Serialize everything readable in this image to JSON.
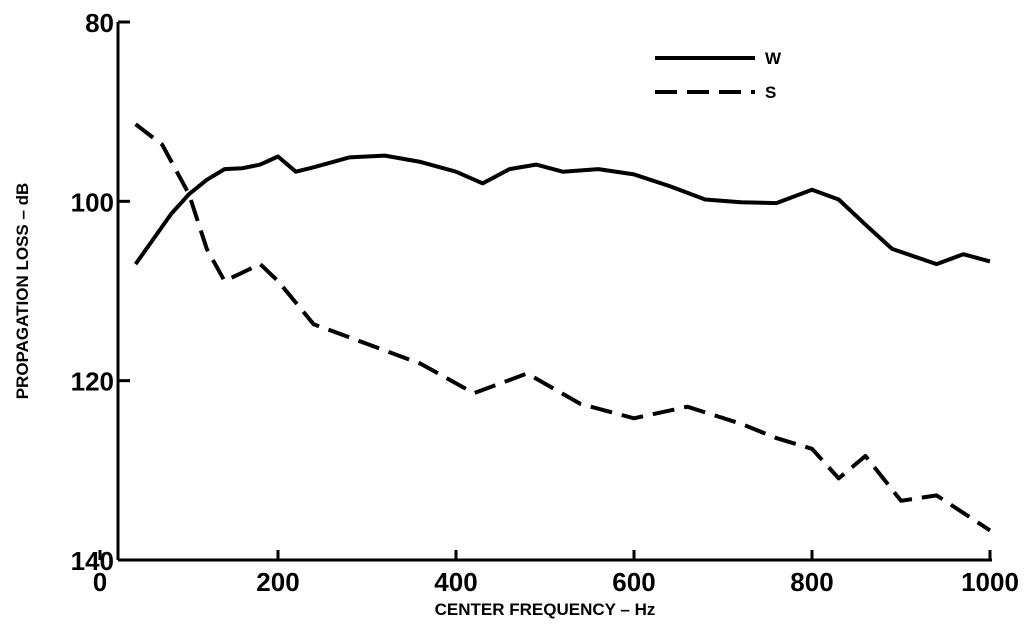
{
  "chart_data": {
    "type": "line",
    "xlabel": "CENTER FREQUENCY – Hz",
    "ylabel": "PROPAGATION LOSS – dB",
    "xlim": [
      0,
      1000
    ],
    "xticks": [
      0,
      200,
      400,
      600,
      800,
      1000
    ],
    "ylim": [
      80,
      140
    ],
    "yticks": [
      80,
      100,
      120,
      140
    ],
    "y_inverted": true,
    "legend": "upper right",
    "series": [
      {
        "name": "W",
        "color": "#000000",
        "line_style": "solid",
        "x": [
          40,
          60,
          80,
          100,
          120,
          140,
          160,
          180,
          200,
          220,
          240,
          280,
          320,
          360,
          400,
          430,
          460,
          490,
          520,
          560,
          600,
          640,
          680,
          720,
          760,
          800,
          830,
          860,
          890,
          940,
          970,
          1000
        ],
        "values": [
          107.0,
          104.2,
          101.4,
          99.2,
          97.6,
          96.4,
          96.3,
          95.9,
          95.0,
          96.7,
          96.2,
          95.1,
          94.9,
          95.6,
          96.7,
          98.0,
          96.4,
          95.9,
          96.7,
          96.4,
          97.0,
          98.3,
          99.8,
          100.1,
          100.2,
          98.7,
          99.8,
          102.6,
          105.3,
          107.0,
          105.9,
          106.7
        ]
      },
      {
        "name": "S",
        "color": "#000000",
        "line_style": "dashed",
        "x": [
          40,
          70,
          100,
          120,
          140,
          180,
          200,
          240,
          300,
          360,
          420,
          480,
          540,
          600,
          660,
          720,
          760,
          800,
          830,
          860,
          900,
          940,
          1000
        ],
        "values": [
          91.4,
          93.7,
          99.2,
          105.3,
          108.9,
          107.0,
          108.9,
          113.7,
          115.9,
          118.1,
          121.4,
          119.2,
          122.6,
          124.2,
          122.9,
          124.8,
          126.4,
          127.6,
          130.9,
          128.4,
          133.4,
          132.8,
          136.7
        ]
      }
    ]
  }
}
